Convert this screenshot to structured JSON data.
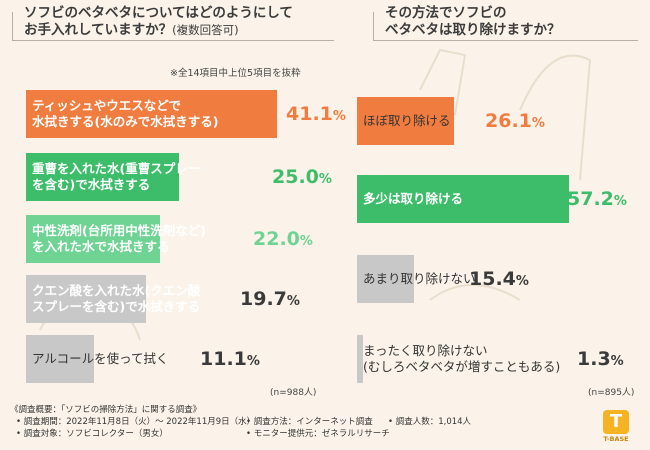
{
  "colors": {
    "orange": "#f07c3f",
    "green": "#3dbd6a",
    "lightgreen": "#6ed393",
    "gray": "#c8c8c8",
    "bg": "#fbf3e9"
  },
  "left": {
    "title_line1": "ソフビのベタベタについてはどのようにして",
    "title_line2": "お手入れしていますか？",
    "title_sub": "(複数回答可)",
    "note": "※全14項目中上位5項目を抜粋",
    "n": "(n=988人)"
  },
  "right": {
    "title_line1": "その方法でソフビの",
    "title_line2": "ベタベタは取り除けますか？",
    "n": "(n=895人)"
  },
  "chart_data": [
    {
      "type": "bar",
      "orientation": "horizontal",
      "title": "ソフビのベタベタについてはどのようにしてお手入れしていますか？(複数回答可)",
      "unit": "%",
      "items": [
        {
          "label": [
            "ティッシュやウエスなどで",
            "水拭きする(水のみで水拭きする)"
          ],
          "value": 41.1,
          "color": "orange"
        },
        {
          "label": [
            "重曹を入れた水(重曹スプレー",
            "を含む)で水拭きする"
          ],
          "value": 25.0,
          "color": "green"
        },
        {
          "label": [
            "中性洗剤(台所用中性洗剤など)",
            "を入れた水で水拭きする"
          ],
          "value": 22.0,
          "color": "lightgreen"
        },
        {
          "label": [
            "クエン酸を入れた水(クエン酸",
            "スプレーを含む)で水拭きする"
          ],
          "value": 19.7,
          "color": "gray"
        },
        {
          "label": [
            "アルコールを使って拭く"
          ],
          "value": 11.1,
          "color": "gray"
        }
      ]
    },
    {
      "type": "bar",
      "orientation": "horizontal",
      "title": "その方法でソフビのベタベタは取り除けますか？",
      "unit": "%",
      "items": [
        {
          "label": [
            "ほぼ取り除ける"
          ],
          "value": 26.1,
          "color": "orange"
        },
        {
          "label": [
            "多少は取り除ける"
          ],
          "value": 57.2,
          "color": "green"
        },
        {
          "label": [
            "あまり取り除けない"
          ],
          "value": 15.4,
          "color": "gray"
        },
        {
          "label": [
            "まったく取り除けない",
            "(むしろベタベタが増すこともある)"
          ],
          "value": 1.3,
          "color": "gray"
        }
      ]
    }
  ],
  "footer": {
    "overview": "《調査概要：「ソフビの掃除方法」に関する調査》",
    "period": "• 調査期間：2022年11月8日（火）～ 2022年11月9日（水）",
    "method": "• 調査方法：インターネット調査",
    "count": "• 調査人数：1,014人",
    "target": "• 調査対象：ソフビコレクター（男女）",
    "provider": "• モニター提供元：ゼネラルリサーチ"
  },
  "logo": {
    "mark": "T",
    "word": "T-BASE"
  }
}
